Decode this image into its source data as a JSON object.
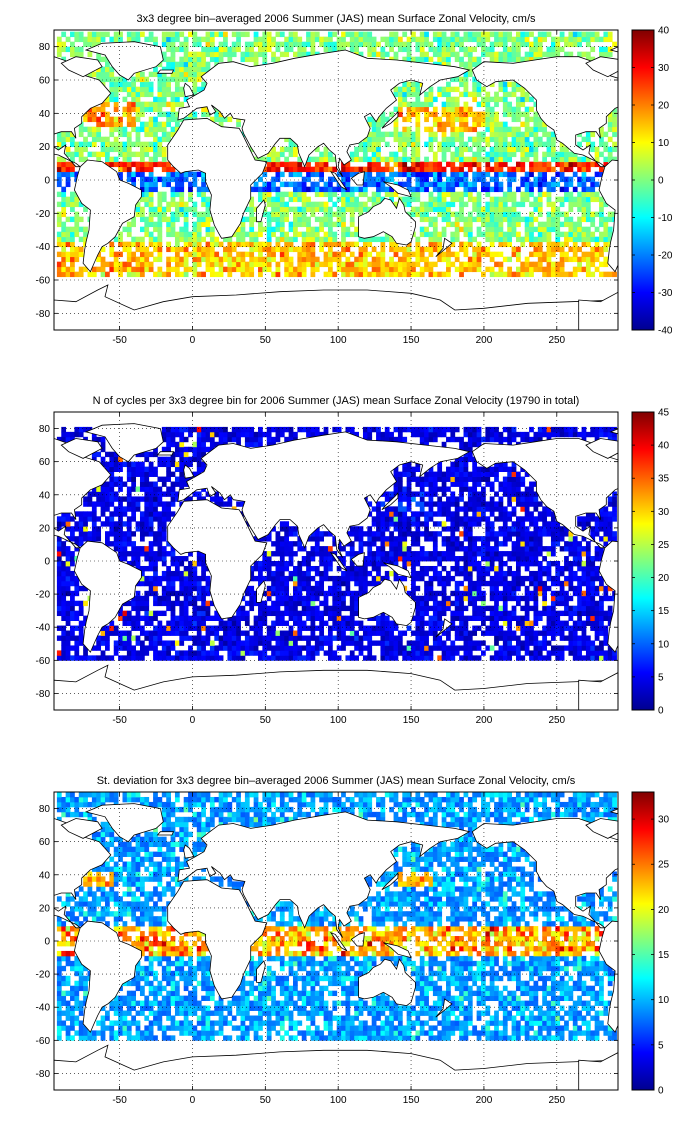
{
  "chart_data": [
    {
      "type": "heatmap",
      "title": "3x3 degree bin–averaged 2006 Summer (JAS) mean Surface Zonal Velocity, cm/s",
      "xlabel": "",
      "ylabel": "",
      "xlim": [
        -95,
        292
      ],
      "ylim": [
        -90,
        90
      ],
      "xticks": [
        -50,
        0,
        50,
        100,
        150,
        200,
        250
      ],
      "yticks": [
        80,
        60,
        40,
        20,
        0,
        -20,
        -40,
        -60,
        -80
      ],
      "grid": true,
      "colorbar": {
        "min": -40,
        "max": 40,
        "ticks": [
          40,
          30,
          20,
          10,
          0,
          -10,
          -20,
          -30,
          -40
        ]
      },
      "field": "velocity"
    },
    {
      "type": "heatmap",
      "title": "N of cycles per 3x3 degree bin for 2006 Summer (JAS) mean Surface Zonal Velocity (19790 in total)",
      "xlabel": "",
      "ylabel": "",
      "xlim": [
        -95,
        292
      ],
      "ylim": [
        -90,
        90
      ],
      "xticks": [
        -50,
        0,
        50,
        100,
        150,
        200,
        250
      ],
      "yticks": [
        80,
        60,
        40,
        20,
        0,
        -20,
        -40,
        -60,
        -80
      ],
      "grid": true,
      "colorbar": {
        "min": 0,
        "max": 45,
        "ticks": [
          45,
          40,
          35,
          30,
          25,
          20,
          15,
          10,
          5,
          0
        ]
      },
      "field": "count"
    },
    {
      "type": "heatmap",
      "title": "St. deviation for 3x3 degree bin–averaged 2006 Summer (JAS) mean Surface Zonal Velocity, cm/s",
      "xlabel": "",
      "ylabel": "",
      "xlim": [
        -95,
        292
      ],
      "ylim": [
        -90,
        90
      ],
      "xticks": [
        -50,
        0,
        50,
        100,
        150,
        200,
        250
      ],
      "yticks": [
        80,
        60,
        40,
        20,
        0,
        -20,
        -40,
        -60,
        -80
      ],
      "grid": true,
      "colorbar": {
        "min": 0,
        "max": 33,
        "ticks": [
          30,
          25,
          20,
          15,
          10,
          5,
          0
        ]
      },
      "field": "std"
    }
  ]
}
